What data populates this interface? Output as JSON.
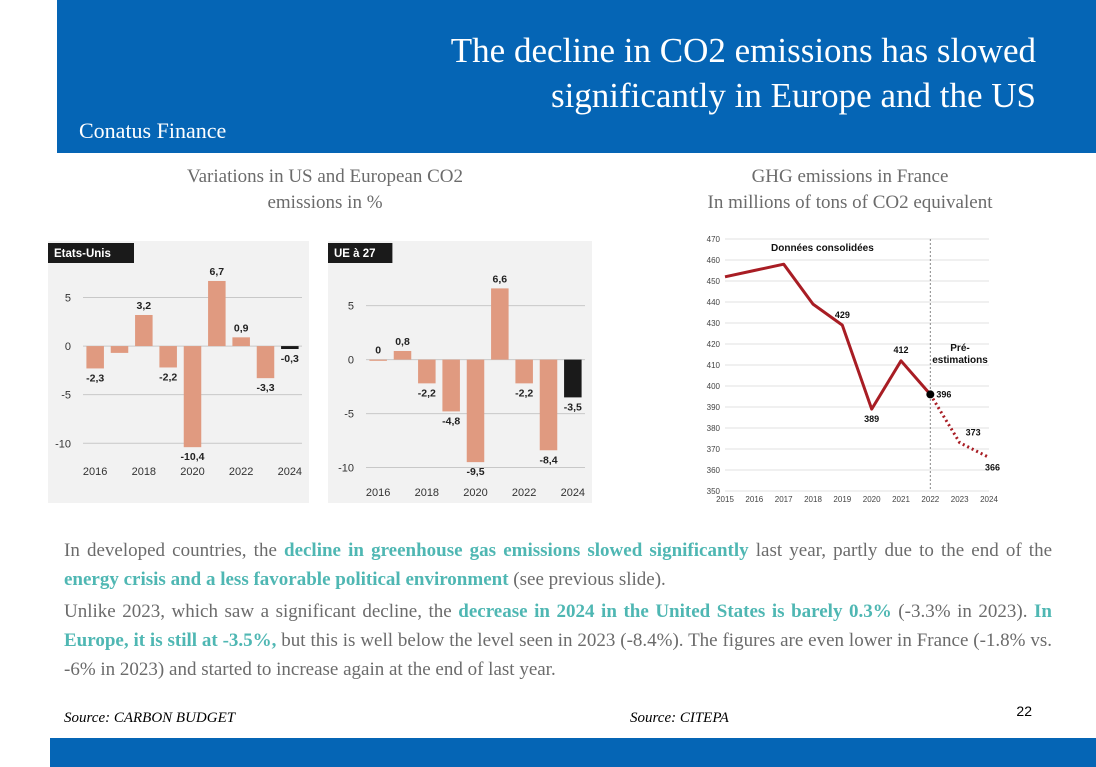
{
  "header": {
    "title_line1": "The decline in CO2 emissions has slowed",
    "title_line2": "significantly in Europe and the US",
    "brand": "Conatus Finance"
  },
  "left_title": {
    "line1": "Variations in US and European CO2",
    "line2": "emissions in %"
  },
  "right_title": {
    "line1": "GHG emissions in France",
    "line2": "In millions of tons of CO2 equivalent"
  },
  "chart_data": [
    {
      "type": "bar",
      "tag": "Etats-Unis",
      "years": [
        2016,
        2017,
        2018,
        2019,
        2020,
        2021,
        2022,
        2023,
        2024
      ],
      "values": [
        -2.3,
        -0.7,
        3.2,
        -2.2,
        -10.4,
        6.7,
        0.9,
        -3.3,
        -0.3
      ],
      "labels": [
        "-2,3",
        "",
        "3,2",
        "-2,2",
        "-10,4",
        "6,7",
        "0,9",
        "-3,3",
        "-0,3"
      ],
      "ylim": [
        -11,
        6.8
      ],
      "yticks": [
        5,
        0,
        -5,
        -10
      ],
      "xticks": [
        "2016",
        "2018",
        "2020",
        "2022",
        "2024"
      ],
      "bar_color": "#e09a80",
      "last_bar_color": "#1a1a1a"
    },
    {
      "type": "bar",
      "tag": "UE à 27",
      "years": [
        2016,
        2017,
        2018,
        2019,
        2020,
        2021,
        2022,
        2023,
        2024
      ],
      "values": [
        0,
        0.8,
        -2.2,
        -4.8,
        -9.5,
        6.6,
        -2.2,
        -8.4,
        -3.5
      ],
      "labels": [
        "0",
        "0,8",
        "-2,2",
        "-4,8",
        "-9,5",
        "6,6",
        "-2,2",
        "-8,4",
        "-3,5"
      ],
      "ylim": [
        -10.6,
        7.1
      ],
      "yticks": [
        5,
        0,
        -5,
        -10
      ],
      "xticks": [
        "2016",
        "2018",
        "2020",
        "2022",
        "2024"
      ],
      "bar_color": "#e09a80",
      "last_bar_color": "#1a1a1a"
    },
    {
      "type": "line",
      "years": [
        2015,
        2016,
        2017,
        2018,
        2019,
        2020,
        2021,
        2022,
        2023,
        2024
      ],
      "values": [
        452,
        455,
        458,
        439,
        429,
        389,
        412,
        396,
        373,
        366
      ],
      "labels": [
        "",
        "",
        "",
        "",
        "429",
        "389",
        "412",
        "396",
        "373",
        "366"
      ],
      "consolidated_until": 2022,
      "ylim": [
        350,
        470
      ],
      "yticks": [
        470,
        460,
        450,
        440,
        430,
        420,
        410,
        400,
        390,
        380,
        370,
        360,
        350
      ],
      "xticks": [
        "2015",
        "2016",
        "2017",
        "2018",
        "2019",
        "2020",
        "2021",
        "2022",
        "2023",
        "2024"
      ],
      "annotation_consolidated": "Données consolidées",
      "annotation_pre_line1": "Pré-",
      "annotation_pre_line2": "estimations",
      "line_color": "#a81d24"
    }
  ],
  "body": {
    "p1": [
      {
        "t": "In developed countries, the ",
        "h": false
      },
      {
        "t": "decline in greenhouse gas emissions slowed significantly",
        "h": true
      },
      {
        "t": " last year, partly due to the end of the ",
        "h": false
      },
      {
        "t": "energy crisis and a less favorable political environment",
        "h": true
      },
      {
        "t": " (see previous slide).",
        "h": false
      }
    ],
    "p2": [
      {
        "t": "Unlike 2023, which saw a significant decline, the ",
        "h": false
      },
      {
        "t": "decrease in 2024 in the United States is barely 0.3%",
        "h": true
      },
      {
        "t": " (-3.3% in 2023). ",
        "h": false
      },
      {
        "t": "In Europe, it is still at -3.5%,",
        "h": true
      },
      {
        "t": " but this is well below the level seen in 2023 (-8.4%). The figures are even lower in France (-1.8% vs. -6% in 2023) and started to increase again at the end of last year.",
        "h": false
      }
    ]
  },
  "sources": {
    "left": "Source: CARBON BUDGET",
    "right": "Source: CITEPA"
  },
  "page_number": "22",
  "colors": {
    "brand_blue": "#0565b5",
    "highlight": "#4fb7b3",
    "body_text": "#6b6b6b"
  }
}
